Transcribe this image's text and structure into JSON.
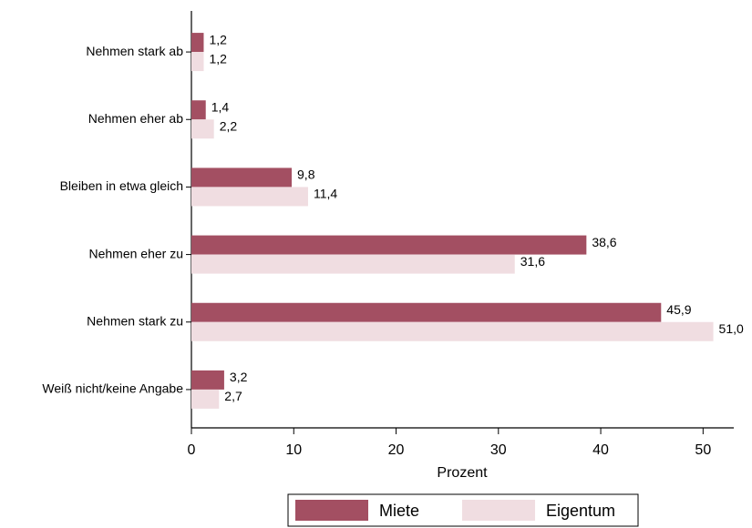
{
  "chart_data": {
    "type": "bar",
    "orientation": "horizontal",
    "categories": [
      "Nehmen stark ab",
      "Nehmen eher ab",
      "Bleiben in etwa gleich",
      "Nehmen eher zu",
      "Nehmen stark zu",
      "Weiß nicht/keine Angabe"
    ],
    "series": [
      {
        "name": "Miete",
        "color": "#a34f62",
        "values": [
          1.2,
          1.4,
          9.8,
          38.6,
          45.9,
          3.2
        ],
        "value_labels": [
          "1,2",
          "1,4",
          "9,8",
          "38,6",
          "45,9",
          "3,2"
        ]
      },
      {
        "name": "Eigentum",
        "color": "#f0dde1",
        "values": [
          1.2,
          2.2,
          11.4,
          31.6,
          51.0,
          2.7
        ],
        "value_labels": [
          "1,2",
          "2,2",
          "11,4",
          "31,6",
          "51,0",
          "2,7"
        ]
      }
    ],
    "xlabel": "Prozent",
    "xlim": [
      0,
      53
    ],
    "xticks": [
      0,
      10,
      20,
      30,
      40,
      50
    ],
    "grid": false,
    "legend": "bottom"
  }
}
